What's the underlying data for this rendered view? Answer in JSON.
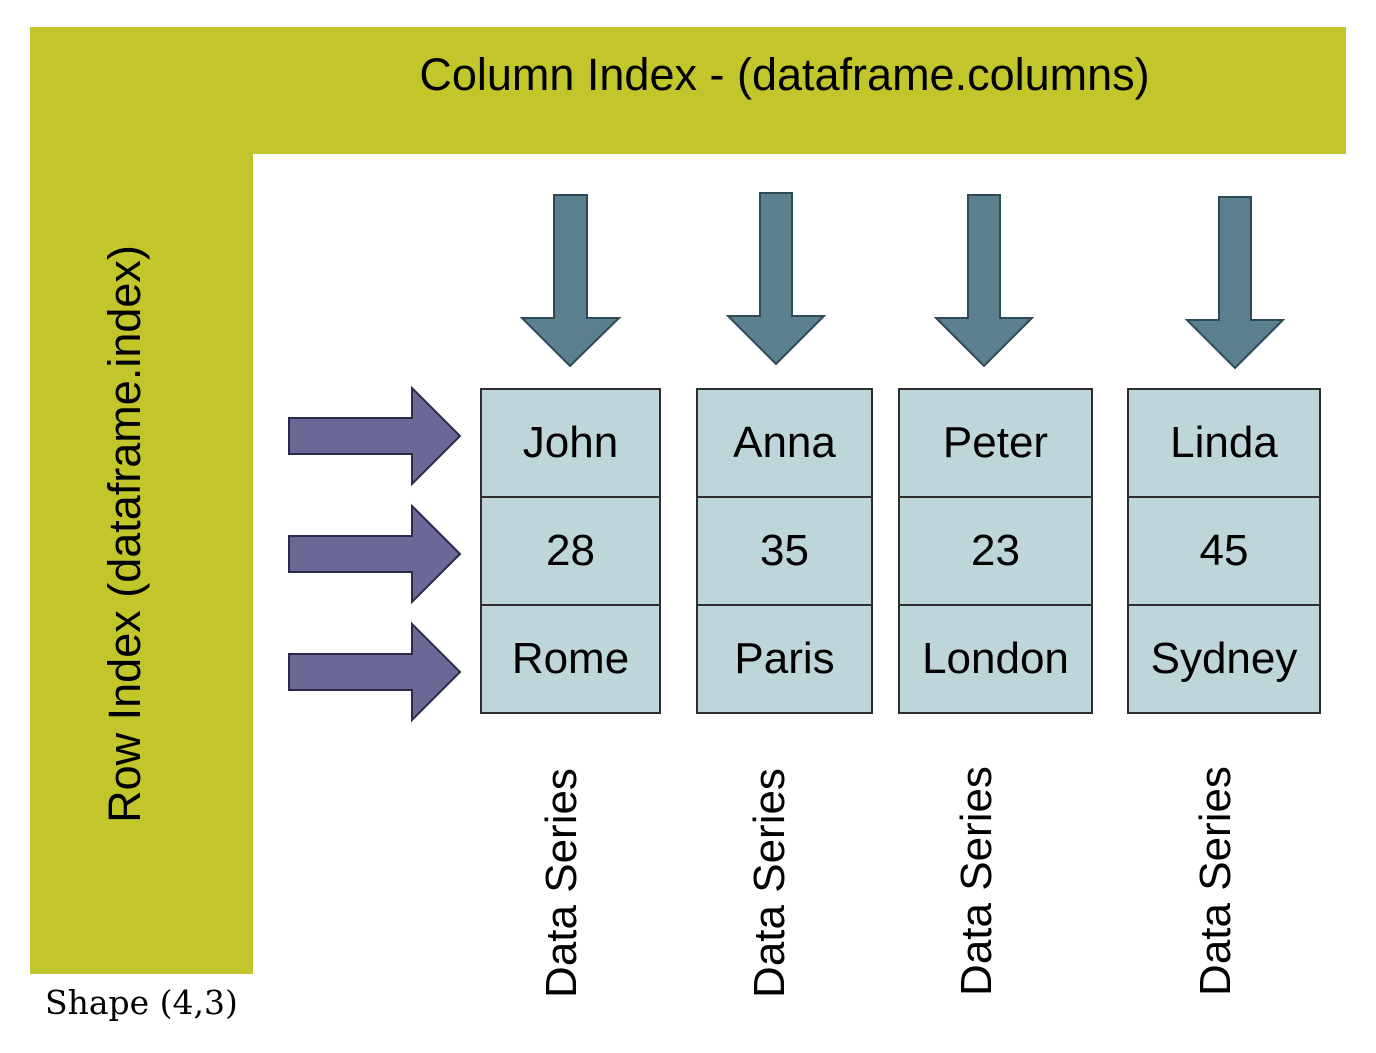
{
  "column_index_label": "Column Index - (dataframe.columns)",
  "row_index_label": "Row Index (dataframe.index)",
  "shape_label": "Shape (4,3)",
  "colors": {
    "band": "#c3c62b",
    "column_arrow": "#5a7f8f",
    "row_arrow": "#6b6898",
    "cell_fill": "#bed5da"
  },
  "columns": [
    {
      "cells": [
        "John",
        "28",
        "Rome"
      ],
      "series_label": "Data Series"
    },
    {
      "cells": [
        "Anna",
        "35",
        "Paris"
      ],
      "series_label": "Data Series"
    },
    {
      "cells": [
        "Peter",
        "23",
        "London"
      ],
      "series_label": "Data Series"
    },
    {
      "cells": [
        "Linda",
        "45",
        "Sydney"
      ],
      "series_label": "Data Series"
    }
  ]
}
